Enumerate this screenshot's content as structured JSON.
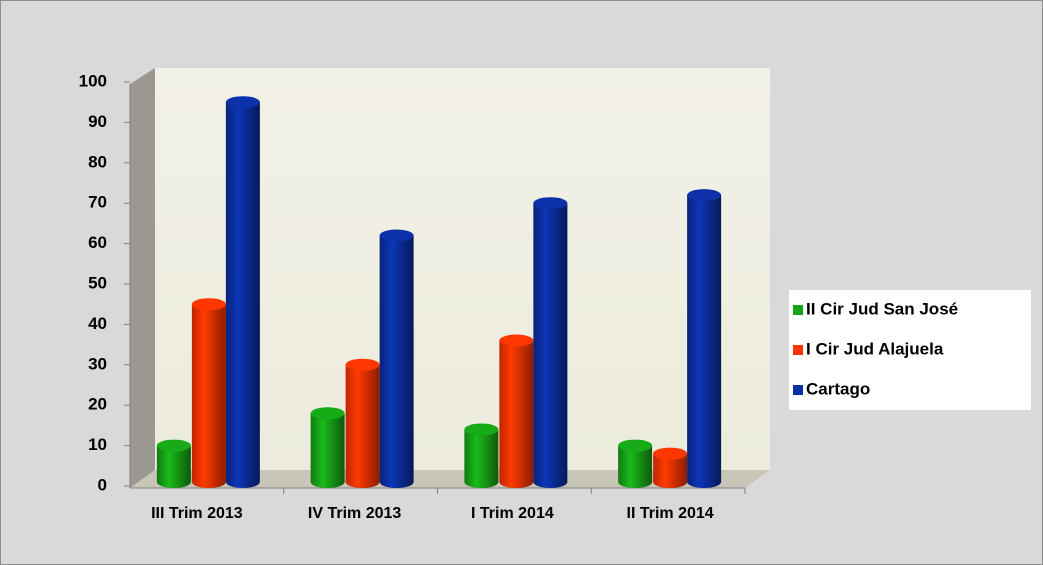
{
  "chart_data": {
    "type": "bar3d",
    "categories": [
      "III Trim 2013",
      "IV Trim 2013",
      "I Trim 2014",
      "II Trim 2014"
    ],
    "series": [
      {
        "name": "II Cir Jud San José",
        "color": "#17a317",
        "values": [
          10,
          18,
          14,
          10
        ]
      },
      {
        "name": "I Cir Jud Alajuela",
        "color": "#ff3300",
        "values": [
          45,
          30,
          36,
          8
        ]
      },
      {
        "name": "Cartago",
        "color": "#0b2fa0",
        "values": [
          95,
          62,
          70,
          72
        ]
      }
    ],
    "ylim": [
      0,
      100
    ],
    "yticks": [
      0,
      10,
      20,
      30,
      40,
      50,
      60,
      70,
      80,
      90,
      100
    ],
    "legend": "right"
  }
}
